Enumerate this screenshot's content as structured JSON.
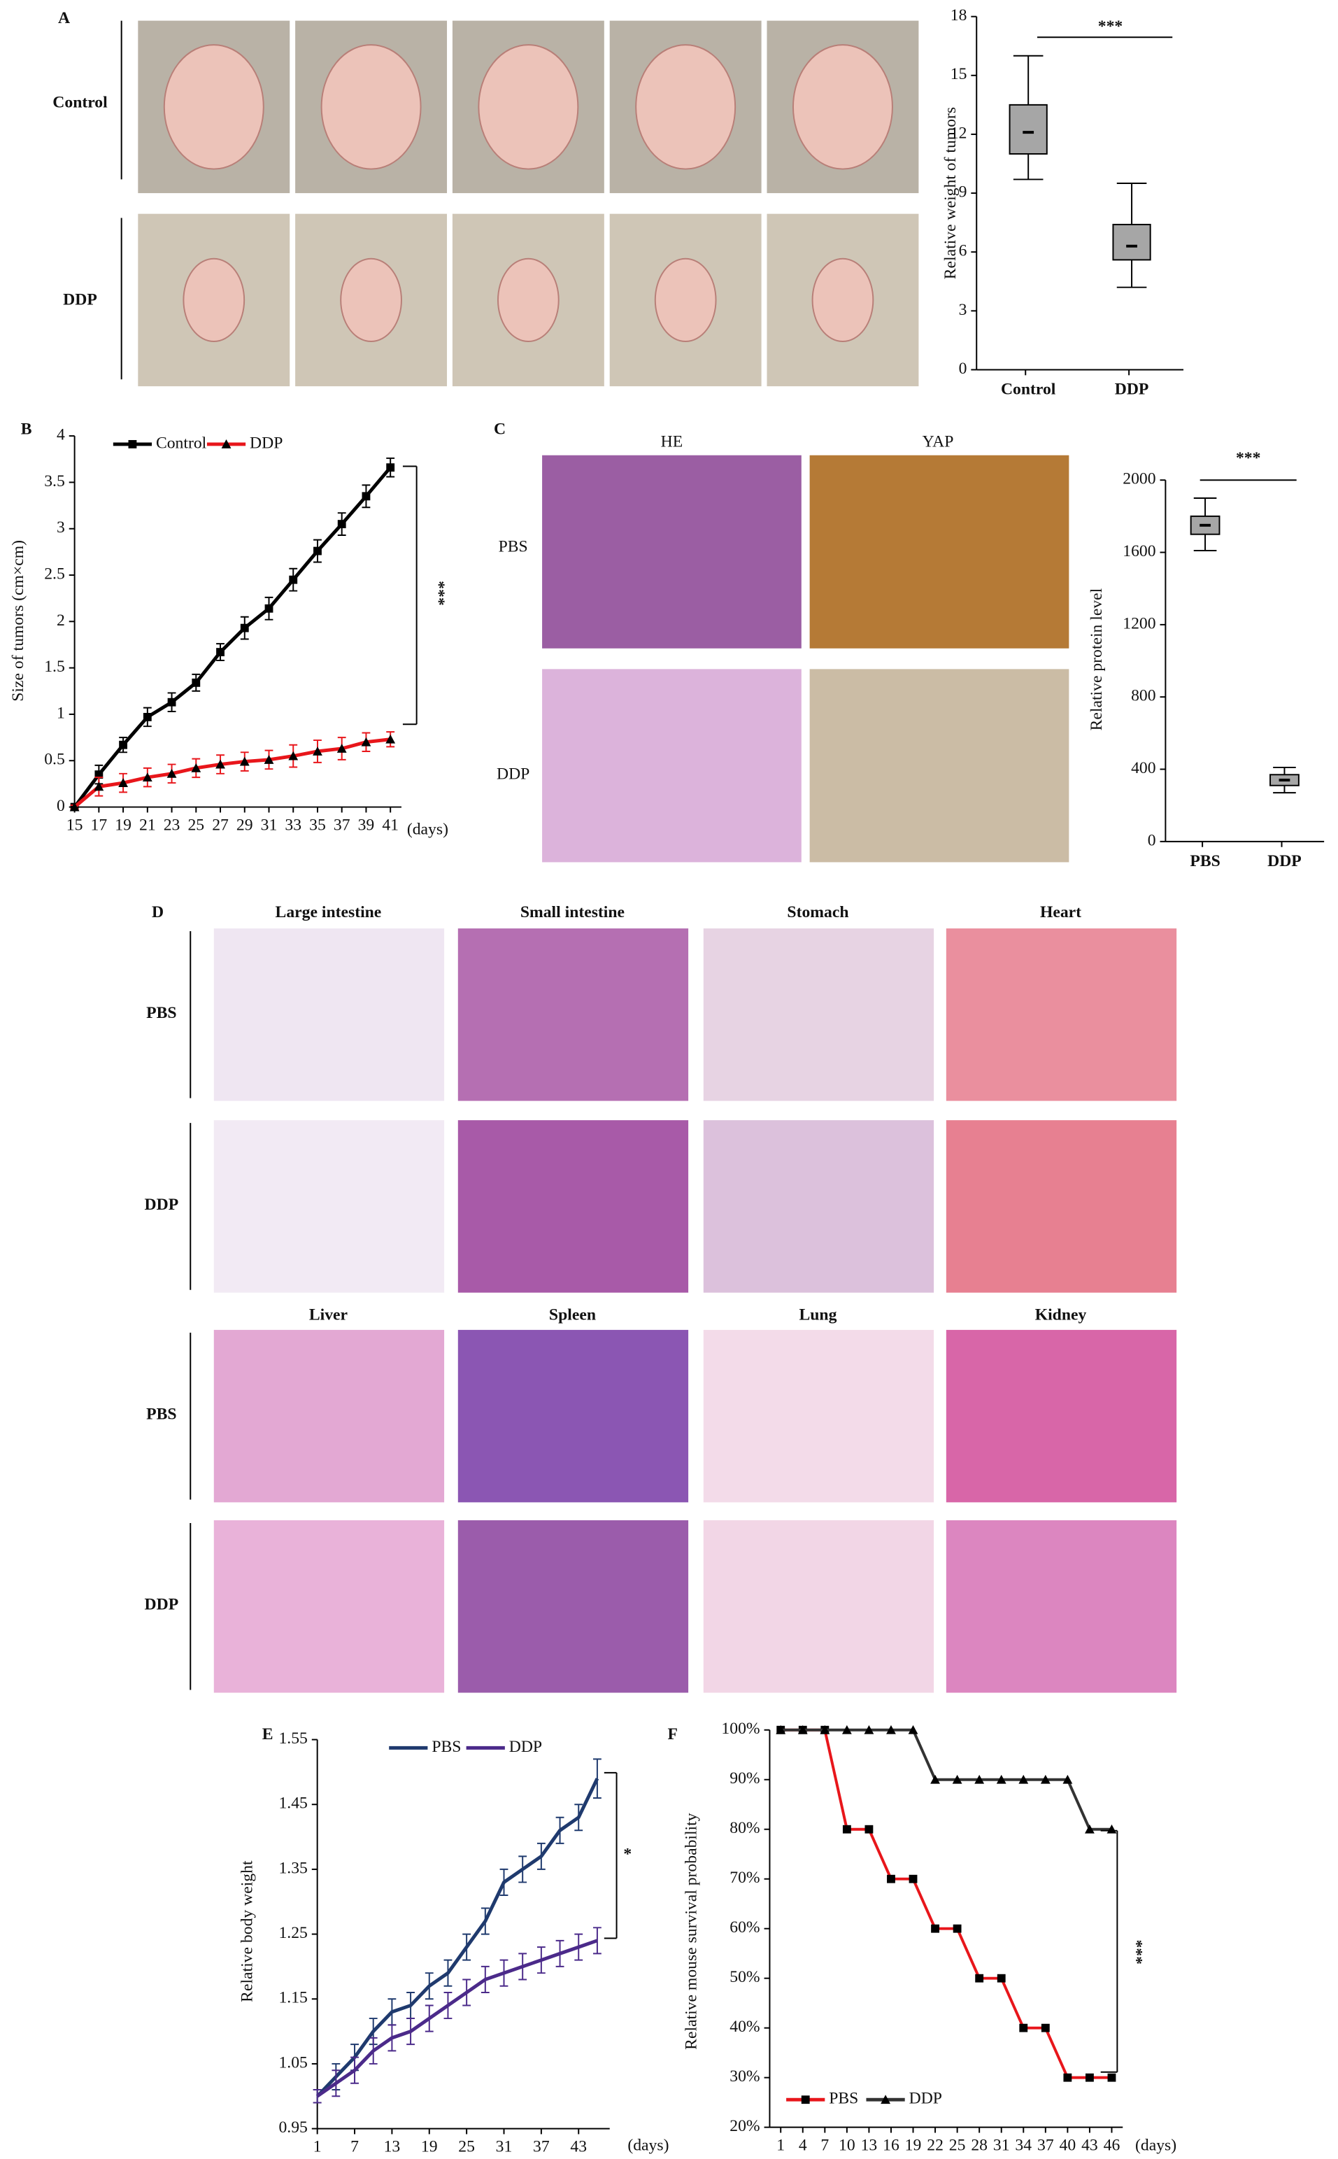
{
  "chart_data": [
    {
      "type": "box",
      "ylabel": "Relative weight of tumors",
      "categories": [
        "Control",
        "DDP"
      ],
      "boxes": [
        {
          "min": 9.7,
          "q1": 11,
          "median": 12.1,
          "q3": 13.5,
          "max": 16
        },
        {
          "min": 4.2,
          "q1": 5.6,
          "median": 6.3,
          "q3": 7.4,
          "max": 9.5
        }
      ],
      "color": "#a6a6a6",
      "ylim": [
        0,
        18
      ],
      "yticks": [
        0,
        3,
        6,
        9,
        12,
        15,
        18
      ],
      "annotation": "***"
    },
    {
      "type": "line",
      "ylabel": "Size of tumors (cm×cm)",
      "xlabel": "(days)",
      "x": [
        15,
        17,
        19,
        21,
        23,
        25,
        27,
        29,
        31,
        33,
        35,
        37,
        39,
        41
      ],
      "series": [
        {
          "name": "Control",
          "color": "#000000",
          "marker": "square",
          "values": [
            0,
            0.35,
            0.67,
            0.97,
            1.13,
            1.34,
            1.67,
            1.93,
            2.14,
            2.45,
            2.76,
            3.05,
            3.35,
            3.66
          ],
          "errors": [
            0.02,
            0.1,
            0.08,
            0.1,
            0.1,
            0.09,
            0.09,
            0.12,
            0.12,
            0.12,
            0.12,
            0.12,
            0.12,
            0.1
          ]
        },
        {
          "name": "DDP",
          "color": "#e8161b",
          "marker": "triangle",
          "values": [
            0,
            0.22,
            0.26,
            0.32,
            0.36,
            0.42,
            0.46,
            0.49,
            0.51,
            0.55,
            0.6,
            0.63,
            0.7,
            0.73
          ],
          "errors": [
            0.02,
            0.1,
            0.1,
            0.1,
            0.1,
            0.1,
            0.1,
            0.1,
            0.1,
            0.12,
            0.12,
            0.12,
            0.1,
            0.08
          ]
        }
      ],
      "xlim": [
        15,
        41
      ],
      "xticks": [
        15,
        17,
        19,
        21,
        23,
        25,
        27,
        29,
        31,
        33,
        35,
        37,
        39,
        41
      ],
      "ylim": [
        0,
        4
      ],
      "yticks": [
        0,
        0.5,
        1,
        1.5,
        2,
        2.5,
        3,
        3.5,
        4
      ],
      "annotation": "***"
    },
    {
      "type": "box",
      "ylabel": "Relative protein level",
      "categories": [
        "PBS",
        "DDP"
      ],
      "boxes": [
        {
          "min": 1610,
          "q1": 1700,
          "median": 1750,
          "q3": 1800,
          "max": 1900
        },
        {
          "min": 270,
          "q1": 310,
          "median": 340,
          "q3": 370,
          "max": 410
        }
      ],
      "color": "#a6a6a6",
      "ylim": [
        0,
        2000
      ],
      "yticks": [
        0,
        400,
        800,
        1200,
        1600,
        2000
      ],
      "annotation": "***"
    },
    {
      "type": "line",
      "ylabel": "Relative body weight",
      "xlabel": "(days)",
      "x": [
        1,
        4,
        7,
        10,
        13,
        16,
        19,
        22,
        25,
        28,
        31,
        34,
        37,
        40,
        43,
        46
      ],
      "series": [
        {
          "name": "PBS",
          "color": "#1f3a6e",
          "marker": "none",
          "values": [
            1.0,
            1.03,
            1.06,
            1.1,
            1.13,
            1.14,
            1.17,
            1.19,
            1.23,
            1.27,
            1.33,
            1.35,
            1.37,
            1.41,
            1.43,
            1.49
          ],
          "errors": [
            0.01,
            0.02,
            0.02,
            0.02,
            0.02,
            0.02,
            0.02,
            0.02,
            0.02,
            0.02,
            0.02,
            0.02,
            0.02,
            0.02,
            0.02,
            0.03
          ]
        },
        {
          "name": "DDP",
          "color": "#4b2a8a",
          "marker": "none",
          "values": [
            1.0,
            1.02,
            1.04,
            1.07,
            1.09,
            1.1,
            1.12,
            1.14,
            1.16,
            1.18,
            1.19,
            1.2,
            1.21,
            1.22,
            1.23,
            1.24
          ],
          "errors": [
            0.01,
            0.02,
            0.02,
            0.02,
            0.02,
            0.02,
            0.02,
            0.02,
            0.02,
            0.02,
            0.02,
            0.02,
            0.02,
            0.02,
            0.02,
            0.02
          ]
        }
      ],
      "xlim": [
        1,
        48
      ],
      "xticks": [
        1,
        7,
        13,
        19,
        25,
        31,
        37,
        43
      ],
      "ylim": [
        0.95,
        1.55
      ],
      "yticks": [
        0.95,
        1.05,
        1.15,
        1.25,
        1.35,
        1.45,
        1.55
      ],
      "annotation": "*"
    },
    {
      "type": "line",
      "ylabel": "Relative mouse survival probability",
      "xlabel": "(days)",
      "x": [
        1,
        4,
        7,
        10,
        13,
        16,
        19,
        22,
        25,
        28,
        31,
        34,
        37,
        40,
        43,
        46
      ],
      "series": [
        {
          "name": "PBS",
          "color": "#e8161b",
          "marker": "square",
          "values": [
            100,
            100,
            100,
            80,
            80,
            70,
            70,
            60,
            60,
            50,
            50,
            40,
            40,
            30,
            30,
            30
          ]
        },
        {
          "name": "DDP",
          "color": "#333333",
          "marker": "triangle",
          "values": [
            100,
            100,
            100,
            100,
            100,
            100,
            100,
            90,
            90,
            90,
            90,
            90,
            90,
            90,
            80,
            80
          ]
        }
      ],
      "xlim": [
        1,
        46
      ],
      "xticks": [
        1,
        4,
        7,
        10,
        13,
        16,
        19,
        22,
        25,
        28,
        31,
        34,
        37,
        40,
        43,
        46
      ],
      "ylim": [
        20,
        100
      ],
      "yticks": [
        {
          "value": 20,
          "label": "20%"
        },
        {
          "value": 30,
          "label": "30%"
        },
        {
          "value": 40,
          "label": "40%"
        },
        {
          "value": 50,
          "label": "50%"
        },
        {
          "value": 60,
          "label": "60%"
        },
        {
          "value": 70,
          "label": "70%"
        },
        {
          "value": 80,
          "label": "80%"
        },
        {
          "value": 90,
          "label": "90%"
        },
        {
          "value": 100,
          "label": "100%"
        }
      ],
      "annotation": "***"
    }
  ],
  "panel_letters": [
    "A",
    "B",
    "C",
    "D",
    "E",
    "F"
  ],
  "panel_a": {
    "rows": [
      "Control",
      "DDP"
    ]
  },
  "panel_c": {
    "columns": [
      "HE",
      "YAP"
    ],
    "rows": [
      "PBS",
      "DDP"
    ]
  },
  "panel_d": {
    "tissues_top": [
      "Large intestine",
      "Small intestine",
      "Stomach",
      "Heart"
    ],
    "tissues_bottom": [
      "Liver",
      "Spleen",
      "Lung",
      "Kidney"
    ],
    "rows": [
      "PBS",
      "DDP",
      "PBS",
      "DDP"
    ]
  }
}
